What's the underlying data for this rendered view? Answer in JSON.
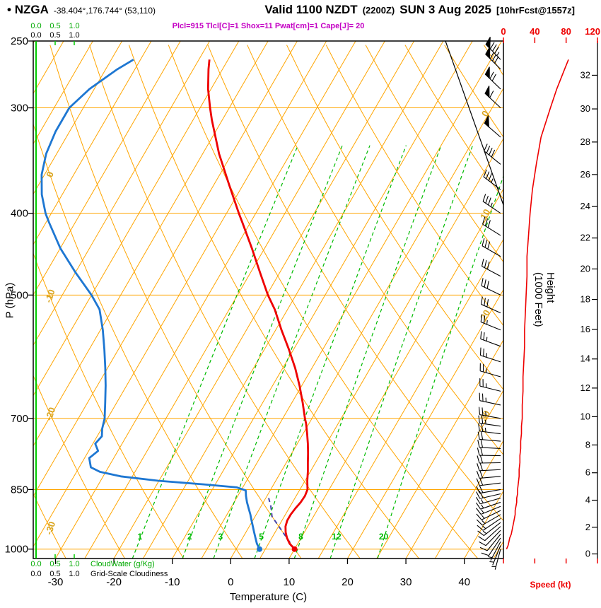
{
  "header": {
    "bullet": "•",
    "station": "NZGA",
    "coords": "-38.404°,176.744° (53,110)",
    "valid": "Valid 1100 NZDT",
    "valid_z": "(2200Z)",
    "date": "SUN 3 Aug 2025",
    "fcst": "[10hrFcst@1557z]",
    "indices": "Plcl=915 Tlcl[C]=1 Shox=11 Pwat[cm]=1 Cape[J]= 20"
  },
  "axes": {
    "pressure_label": "P (hPa)",
    "pressure_ticks": [
      250,
      300,
      400,
      500,
      700,
      850,
      1000
    ],
    "temp_label": "Temperature (C)",
    "temp_ticks": [
      -30,
      -20,
      -10,
      0,
      10,
      20,
      30,
      40
    ],
    "height_label": "Height (1000 Feet)",
    "height_ticks": [
      0,
      2,
      4,
      6,
      8,
      10,
      12,
      14,
      16,
      18,
      20,
      22,
      24,
      26,
      28,
      30,
      32
    ],
    "speed_label": "Speed (kt)",
    "speed_ticks": [
      0,
      40,
      80,
      120
    ],
    "cloudwater_label": "CloudWater (g/Kg)",
    "cloudiness_label": "Grid-Scale Cloudiness",
    "cloud_scale": [
      "0.0",
      "0.5",
      "1.0"
    ]
  },
  "colors": {
    "grid_orange": "#FFA500",
    "mixing_green": "#00BB00",
    "cloud_green": "#00CC00",
    "temp_red": "#EE0000",
    "dew_blue": "#1E77D2",
    "parcel": "#4444AA",
    "magenta": "#C400C4",
    "gold_label": "#D9A520",
    "speed_red": "#EE0000",
    "black": "#000000"
  },
  "chart_data": {
    "type": "line",
    "variant": "skew-t log-p sounding",
    "title": "NZGA Valid 1100 NZDT (2200Z) SUN 3 Aug 2025 [10hrFcst@1557z]",
    "pressure_top_hpa": 250,
    "pressure_bottom_hpa": 1026,
    "temp_axis_ticks_c": [
      -30,
      -20,
      -10,
      0,
      10,
      20,
      30,
      40
    ],
    "isotherm_step_c": 5,
    "isobars_hpa": [
      300,
      400,
      500,
      700,
      850,
      1000
    ],
    "dry_adiabat_labels_c": [
      10,
      0,
      -10,
      -20,
      -30
    ],
    "isotherm_labels_c": [
      0,
      10,
      20,
      30
    ],
    "mixing_ratio_gkg": [
      1,
      2,
      3,
      5,
      8,
      12,
      20
    ],
    "surface_temp_c": 10,
    "surface_dewpoint_c": 4,
    "speed_axis_max_kt": 120,
    "cloud_water_gkg": 0,
    "grid_scale_cloudiness": 0,
    "temperature_c": [
      [
        1000,
        10.0
      ],
      [
        985,
        8.6
      ],
      [
        970,
        7.6
      ],
      [
        955,
        6.8
      ],
      [
        940,
        6.2
      ],
      [
        925,
        5.9
      ],
      [
        910,
        5.9
      ],
      [
        895,
        6.1
      ],
      [
        880,
        6.4
      ],
      [
        865,
        6.5
      ],
      [
        850,
        6.3
      ],
      [
        830,
        5.4
      ],
      [
        810,
        4.6
      ],
      [
        790,
        3.7
      ],
      [
        770,
        2.8
      ],
      [
        750,
        1.8
      ],
      [
        730,
        0.7
      ],
      [
        710,
        -0.5
      ],
      [
        700,
        -1.2
      ],
      [
        670,
        -3.2
      ],
      [
        640,
        -5.4
      ],
      [
        610,
        -7.9
      ],
      [
        580,
        -10.8
      ],
      [
        550,
        -14.0
      ],
      [
        520,
        -17.2
      ],
      [
        500,
        -19.8
      ],
      [
        470,
        -23.4
      ],
      [
        440,
        -27.2
      ],
      [
        410,
        -31.4
      ],
      [
        400,
        -32.9
      ],
      [
        370,
        -37.4
      ],
      [
        340,
        -42.2
      ],
      [
        310,
        -46.8
      ],
      [
        300,
        -48.3
      ],
      [
        285,
        -50.5
      ],
      [
        270,
        -52.4
      ],
      [
        263,
        -53.2
      ]
    ],
    "dewpoint_c": [
      [
        1000,
        4.0
      ],
      [
        985,
        3.0
      ],
      [
        970,
        2.2
      ],
      [
        955,
        1.4
      ],
      [
        940,
        0.6
      ],
      [
        925,
        -0.2
      ],
      [
        910,
        -1.0
      ],
      [
        895,
        -1.9
      ],
      [
        880,
        -2.8
      ],
      [
        865,
        -3.6
      ],
      [
        852,
        -4.2
      ],
      [
        845,
        -6.0
      ],
      [
        838,
        -12.0
      ],
      [
        830,
        -20.0
      ],
      [
        820,
        -27.0
      ],
      [
        810,
        -31.0
      ],
      [
        800,
        -33.0
      ],
      [
        780,
        -34.2
      ],
      [
        765,
        -33.4
      ],
      [
        750,
        -34.6
      ],
      [
        735,
        -34.2
      ],
      [
        720,
        -34.9
      ],
      [
        700,
        -35.5
      ],
      [
        670,
        -37.0
      ],
      [
        640,
        -38.6
      ],
      [
        610,
        -40.4
      ],
      [
        580,
        -42.4
      ],
      [
        550,
        -44.6
      ],
      [
        520,
        -47.2
      ],
      [
        500,
        -50.0
      ],
      [
        470,
        -55.0
      ],
      [
        440,
        -60.0
      ],
      [
        410,
        -64.5
      ],
      [
        400,
        -66.0
      ],
      [
        380,
        -68.5
      ],
      [
        360,
        -70.5
      ],
      [
        340,
        -71.8
      ],
      [
        320,
        -72.4
      ],
      [
        300,
        -72.4
      ],
      [
        285,
        -70.8
      ],
      [
        270,
        -68.0
      ],
      [
        263,
        -66.2
      ]
    ],
    "parcel_c": [
      [
        1000,
        10.0
      ],
      [
        915,
        2.9
      ],
      [
        890,
        1.7
      ],
      [
        870,
        0.5
      ]
    ],
    "wind": [
      [
        1000,
        195,
        4
      ],
      [
        990,
        202,
        6
      ],
      [
        980,
        208,
        7
      ],
      [
        970,
        214,
        8
      ],
      [
        960,
        219,
        10
      ],
      [
        950,
        224,
        11
      ],
      [
        940,
        228,
        12
      ],
      [
        930,
        232,
        13
      ],
      [
        920,
        236,
        14
      ],
      [
        910,
        240,
        15
      ],
      [
        900,
        244,
        15
      ],
      [
        890,
        248,
        16
      ],
      [
        880,
        251,
        17
      ],
      [
        870,
        254,
        17
      ],
      [
        860,
        257,
        18
      ],
      [
        850,
        260,
        18
      ],
      [
        835,
        263,
        19
      ],
      [
        820,
        265,
        20
      ],
      [
        805,
        267,
        20
      ],
      [
        790,
        269,
        21
      ],
      [
        775,
        271,
        21
      ],
      [
        760,
        273,
        22
      ],
      [
        745,
        275,
        22
      ],
      [
        730,
        277,
        23
      ],
      [
        715,
        278,
        23
      ],
      [
        700,
        280,
        24
      ],
      [
        675,
        282,
        24
      ],
      [
        650,
        284,
        25
      ],
      [
        625,
        286,
        25
      ],
      [
        600,
        288,
        26
      ],
      [
        575,
        290,
        27
      ],
      [
        550,
        292,
        27
      ],
      [
        525,
        294,
        28
      ],
      [
        500,
        296,
        29
      ],
      [
        475,
        298,
        30
      ],
      [
        450,
        300,
        30
      ],
      [
        425,
        302,
        32
      ],
      [
        400,
        304,
        34
      ],
      [
        375,
        307,
        37
      ],
      [
        350,
        309,
        42
      ],
      [
        325,
        311,
        48
      ],
      [
        300,
        313,
        60
      ],
      [
        285,
        314,
        68
      ],
      [
        270,
        315,
        78
      ],
      [
        263,
        316,
        83
      ]
    ]
  }
}
